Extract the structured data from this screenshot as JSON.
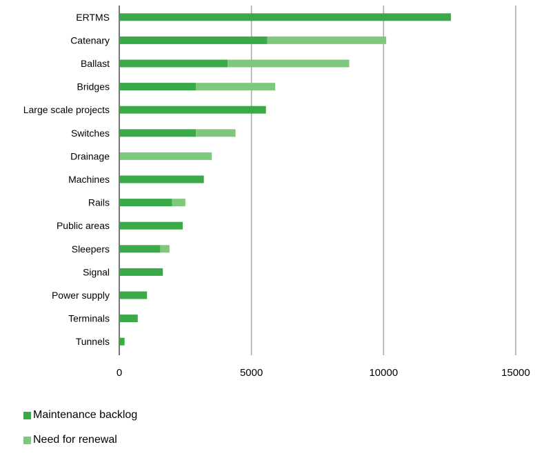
{
  "chart_data": {
    "type": "bar",
    "orientation": "horizontal",
    "stacked": true,
    "categories": [
      "ERTMS",
      "Catenary",
      "Ballast",
      "Bridges",
      "Large scale projects",
      "Switches",
      "Drainage",
      "Machines",
      "Rails",
      "Public areas",
      "Sleepers",
      "Signal",
      "Power supply",
      "Terminals",
      "Tunnels"
    ],
    "series": [
      {
        "name": "Maintenance backlog",
        "color": "#3aaa48",
        "values": [
          12550,
          5600,
          4100,
          2900,
          5550,
          2900,
          0,
          3200,
          2000,
          2400,
          1550,
          1650,
          1050,
          700,
          200
        ]
      },
      {
        "name": "Need for renewal",
        "color": "#7ec87e",
        "values": [
          0,
          4500,
          4600,
          3000,
          0,
          1500,
          3500,
          0,
          500,
          0,
          350,
          0,
          0,
          0,
          0
        ]
      }
    ],
    "xlim": [
      0,
      15000
    ],
    "xticks": [
      "0",
      "5000",
      "10000",
      "15000"
    ],
    "xtick_values": [
      0,
      5000,
      10000,
      15000
    ],
    "grid": "vertical",
    "legend_position": "bottom-left"
  }
}
